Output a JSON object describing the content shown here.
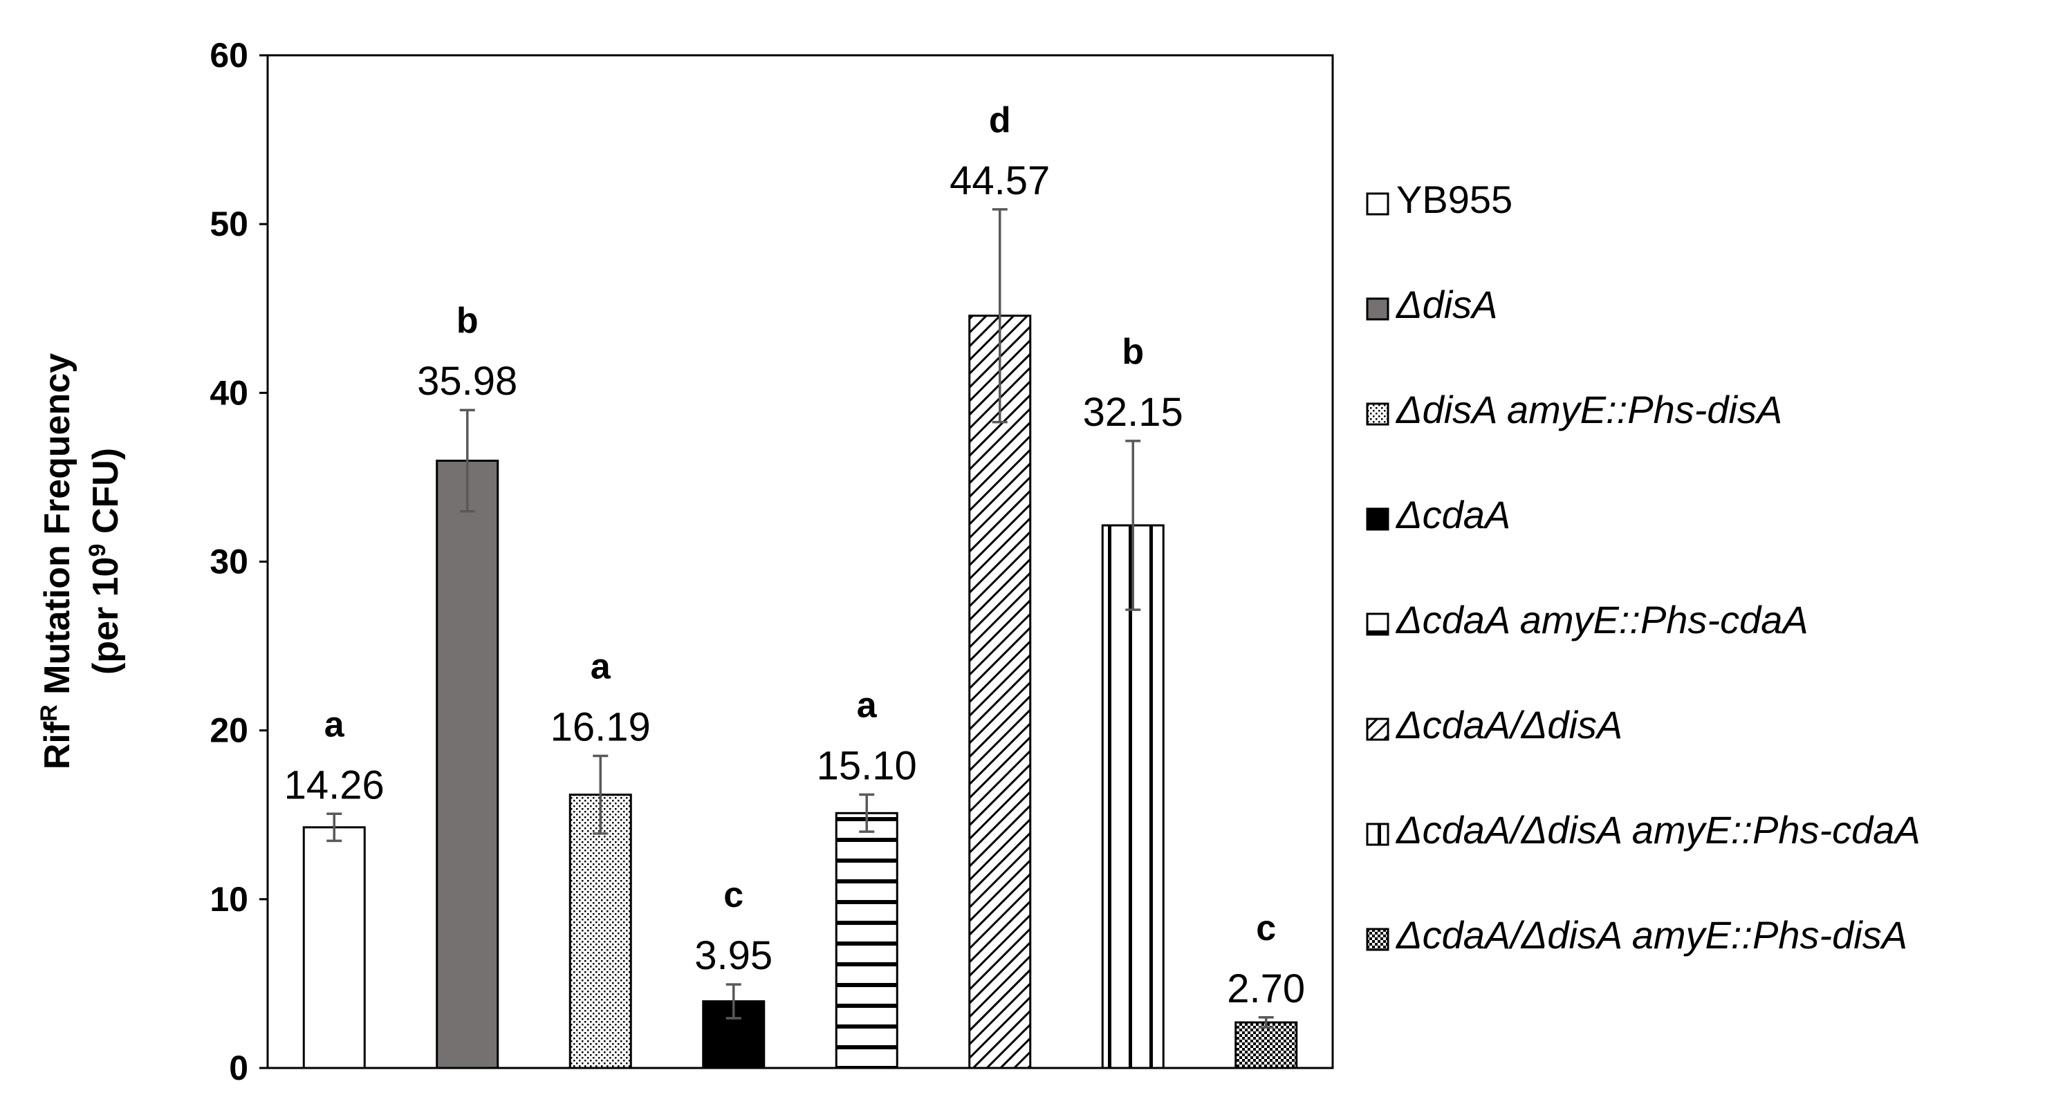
{
  "chart_data": {
    "type": "bar",
    "title": "",
    "xlabel": "",
    "ylabel": {
      "line1_prefix": "Rif",
      "line1_sup": "R",
      "line1_suffix": " Mutation Frequency",
      "line2_prefix": "(per 10",
      "line2_sup": "9",
      "line2_suffix": " CFU)"
    },
    "ylim": [
      0,
      60
    ],
    "yticks": [
      "0",
      "10",
      "20",
      "30",
      "40",
      "50",
      "60"
    ],
    "grid": false,
    "legend_position": "right",
    "series": [
      {
        "name": "YB955",
        "name_italic": false,
        "value": 14.26,
        "value_label": "14.26",
        "err": 0.8,
        "group": "a",
        "fill": "white"
      },
      {
        "name": "ΔdisA",
        "name_italic": true,
        "value": 35.98,
        "value_label": "35.98",
        "err": 3.0,
        "group": "b",
        "fill": "gray"
      },
      {
        "name": "ΔdisA amyE::Phs-disA",
        "name_italic": true,
        "value": 16.19,
        "value_label": "16.19",
        "err": 2.3,
        "group": "a",
        "fill": "dots"
      },
      {
        "name": "ΔcdaA",
        "name_italic": true,
        "value": 3.95,
        "value_label": "3.95",
        "err": 1.0,
        "group": "c",
        "fill": "black"
      },
      {
        "name": "ΔcdaA amyE::Phs-cdaA",
        "name_italic": true,
        "value": 15.1,
        "value_label": "15.10",
        "err": 1.1,
        "group": "a",
        "fill": "hlines"
      },
      {
        "name": "ΔcdaA/ΔdisA",
        "name_italic": true,
        "value": 44.57,
        "value_label": "44.57",
        "err": 6.3,
        "group": "d",
        "fill": "diag"
      },
      {
        "name": "ΔcdaA/ΔdisA amyE::Phs-cdaA",
        "name_italic": true,
        "value": 32.15,
        "value_label": "32.15",
        "err": 5.0,
        "group": "b",
        "fill": "vlines"
      },
      {
        "name": "ΔcdaA/ΔdisA amyE::Phs-disA",
        "name_italic": true,
        "value": 2.7,
        "value_label": "2.70",
        "err": 0.3,
        "group": "c",
        "fill": "checker"
      }
    ]
  },
  "colors": {
    "gray": "#767171",
    "black": "#000000",
    "white": "#ffffff",
    "error_bar": "#595959",
    "axis": "#000000"
  }
}
